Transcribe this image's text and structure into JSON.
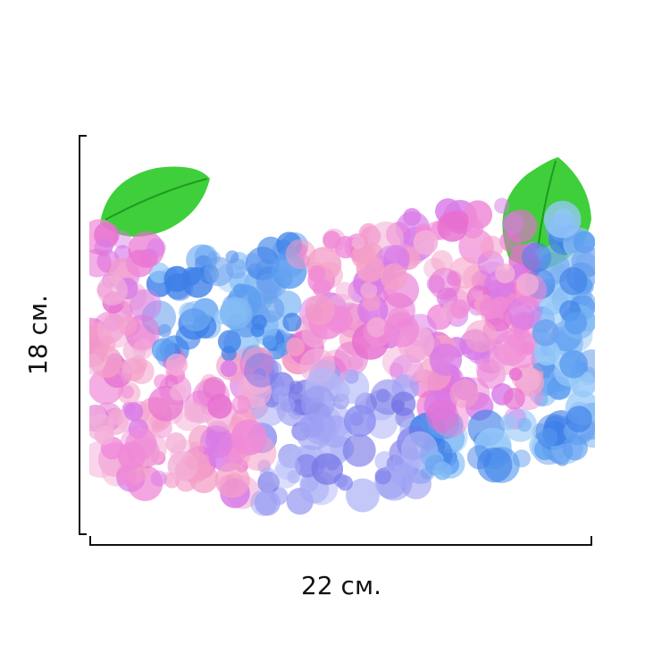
{
  "dimensions": {
    "height": "18 см.",
    "width": "22 см."
  }
}
